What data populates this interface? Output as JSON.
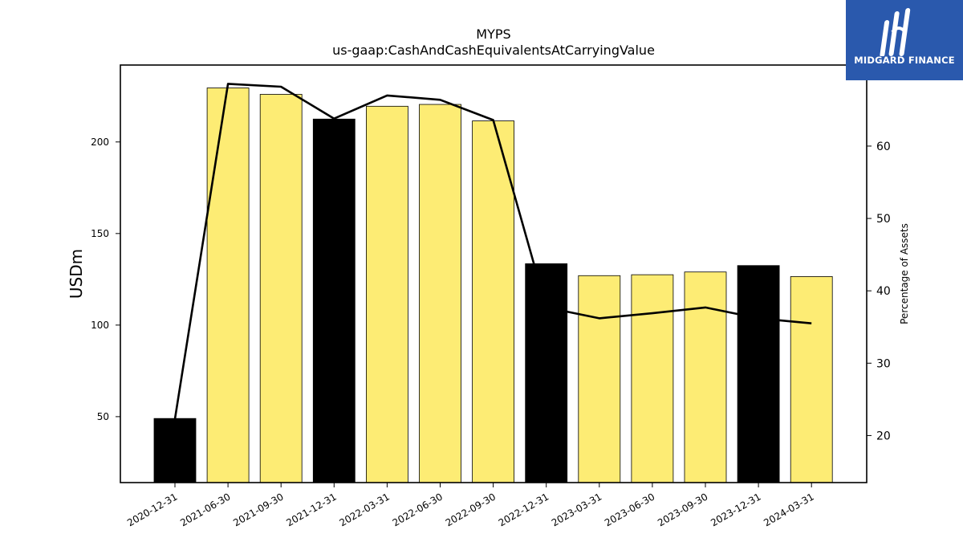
{
  "chart_data": {
    "type": "bar",
    "title": "MYPS",
    "subtitle": "us-gaap:CashAndCashEquivalentsAtCarryingValue",
    "ylabel": "USDm",
    "y2label": "Percentage of Assets",
    "categories": [
      "2020-12-31",
      "2021-06-30",
      "2021-09-30",
      "2021-12-31",
      "2022-03-31",
      "2022-06-30",
      "2022-09-30",
      "2022-12-31",
      "2023-03-31",
      "2023-06-30",
      "2023-09-30",
      "2023-12-31",
      "2024-03-31"
    ],
    "values": [
      49,
      229.5,
      226,
      212.5,
      219.5,
      220.5,
      211.5,
      133.5,
      127,
      127.5,
      129,
      132.5,
      126.5
    ],
    "year_end": [
      true,
      false,
      false,
      true,
      false,
      false,
      false,
      true,
      false,
      false,
      false,
      true,
      false
    ],
    "line_values": [
      22.3,
      68.6,
      68.2,
      63.8,
      67.0,
      66.4,
      63.6,
      37.7,
      36.2,
      36.9,
      37.7,
      36.2,
      35.5
    ],
    "ylim": [
      14,
      242
    ],
    "y2lim": [
      13.5,
      71.2
    ],
    "yticks": [
      50,
      100,
      150,
      200
    ],
    "y2ticks": [
      20,
      30,
      40,
      50,
      60
    ],
    "colors": {
      "bar": "#fdec74",
      "bar_year_end": "#000000",
      "line": "#000000"
    }
  },
  "logo": {
    "text": "MIDGARD FINANCE",
    "bg": "#2a59ad"
  }
}
